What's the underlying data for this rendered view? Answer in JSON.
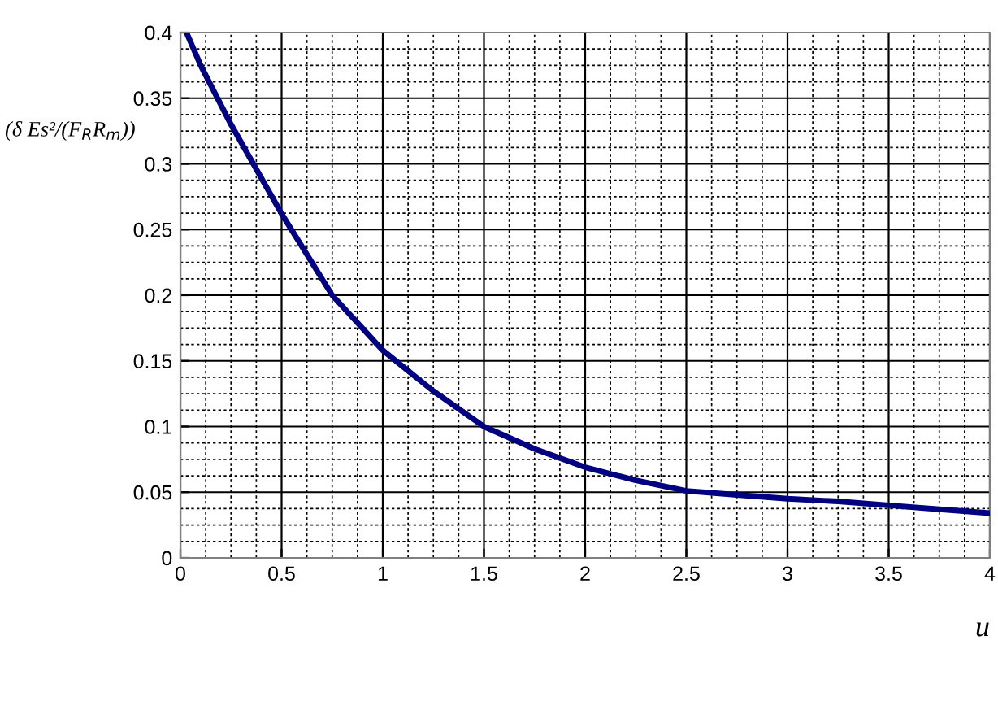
{
  "chart_data": {
    "type": "line",
    "xlabel": "u",
    "ylabel": "(δ Es²/(F$_{R}$R$_{m}$))",
    "x": [
      0.03,
      0.1,
      0.25,
      0.5,
      0.75,
      1,
      1.25,
      1.5,
      1.75,
      2,
      2.25,
      2.5,
      2.75,
      3,
      3.25,
      3.5,
      3.75,
      4
    ],
    "series": [
      {
        "color": "#000080",
        "values": [
          0.4,
          0.375,
          0.33,
          0.262,
          0.2,
          0.158,
          0.127,
          0.1,
          0.083,
          0.069,
          0.059,
          0.051,
          0.048,
          0.045,
          0.043,
          0.04,
          0.037,
          0.034
        ]
      }
    ],
    "xlim": [
      0,
      4
    ],
    "ylim": [
      0,
      0.4
    ],
    "xticks": [
      0,
      0.5,
      1,
      1.5,
      2,
      2.5,
      3,
      3.5,
      4
    ],
    "yticks": [
      0,
      0.05,
      0.1,
      0.15,
      0.2,
      0.25,
      0.3,
      0.35,
      0.4
    ],
    "grid": true,
    "marker": "none",
    "line_style": "solid"
  }
}
